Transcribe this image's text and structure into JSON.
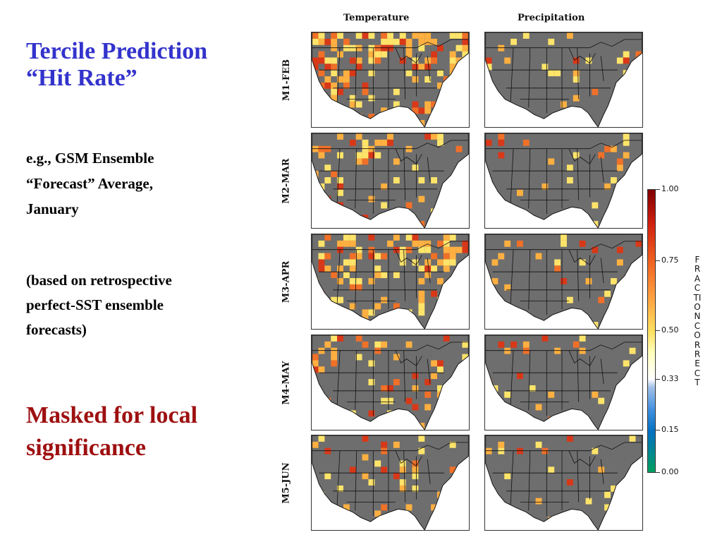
{
  "slide": {
    "title_line1": "Tercile Prediction",
    "title_line2": "“Hit Rate”",
    "note_line1": "e.g., GSM Ensemble",
    "note_line2": "“Forecast” Average,",
    "note_line3": "January",
    "basis_line1": "(based on retrospective",
    "basis_line2": "perfect-SST ensemble",
    "basis_line3": "forecasts)",
    "masked_line1": "Masked for local",
    "masked_line2": "significance"
  },
  "figure": {
    "col_headers": [
      "Temperature",
      "Precipitation"
    ],
    "row_labels": [
      "M1-FEB",
      "M2-MAR",
      "M3-APR",
      "M4-MAY",
      "M5-JUN"
    ],
    "colorbar": {
      "title": "FRACTION CORRECT",
      "ticks": [
        "1.00",
        "0.75",
        "0.50",
        "0.33",
        "0.15",
        "0.00"
      ]
    },
    "colors": {
      "land_masked": "#6e6e6e",
      "low_hit": "#ffe46a",
      "mid_hit": "#ffb040",
      "high_hit": "#f07028",
      "very_high_hit": "#d83818"
    }
  }
}
